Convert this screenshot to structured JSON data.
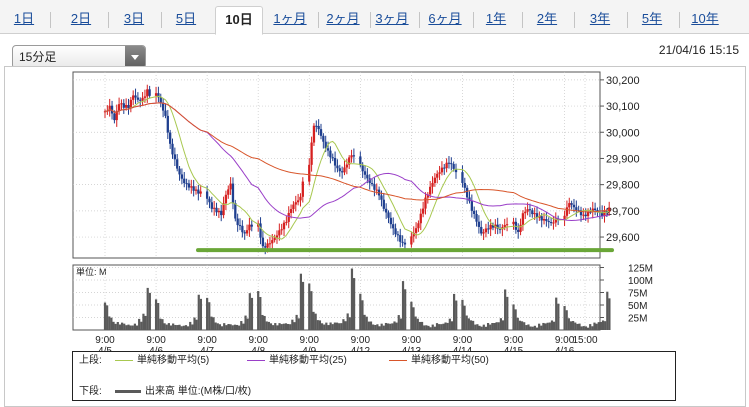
{
  "tabs": [
    {
      "label": "1日",
      "active": false
    },
    {
      "label": "2日",
      "active": false
    },
    {
      "label": "3日",
      "active": false
    },
    {
      "label": "5日",
      "active": false
    },
    {
      "label": "10日",
      "active": true
    },
    {
      "label": "1ヶ月",
      "active": false
    },
    {
      "label": "2ヶ月",
      "active": false
    },
    {
      "label": "3ヶ月",
      "active": false
    },
    {
      "label": "6ヶ月",
      "active": false
    },
    {
      "label": "1年",
      "active": false
    },
    {
      "label": "2年",
      "active": false
    },
    {
      "label": "3年",
      "active": false
    },
    {
      "label": "5年",
      "active": false
    },
    {
      "label": "10年",
      "active": false
    }
  ],
  "interval_select": {
    "value": "15分足"
  },
  "datetime": "21/04/16 15:15",
  "colors": {
    "up": "#d62020",
    "down": "#1f3f8f",
    "ma5": "#a8c850",
    "ma25": "#9a3fc8",
    "ma50": "#d8552a",
    "support": "#6aa637",
    "volume": "#5a5a5a",
    "grid": "#c8c8c8"
  },
  "legend": {
    "upper_label": "上段:",
    "lower_label": "下段:",
    "ma5": "単純移動平均(5)",
    "ma25": "単純移動平均(25)",
    "ma50": "単純移動平均(50)",
    "volume": "出来高 単位:(M株/口/枚)"
  },
  "volume_unit_label": "単位: M",
  "chart_data": [
    {
      "type": "candlestick",
      "title": "",
      "y_ticks": [
        29600,
        29700,
        29800,
        29900,
        30000,
        30100,
        30200
      ],
      "y_tick_labels": [
        "29,600",
        "29,700",
        "29,800",
        "29,900",
        "30,000",
        "30,100",
        "30,200"
      ],
      "ylim": [
        29520,
        30230
      ],
      "x_tick_labels": [
        {
          "time": "9:00",
          "date": "4/5"
        },
        {
          "time": "9:00",
          "date": "4/6"
        },
        {
          "time": "9:00",
          "date": "4/7"
        },
        {
          "time": "9:00",
          "date": "4/8"
        },
        {
          "time": "9:00",
          "date": "4/9"
        },
        {
          "time": "9:00",
          "date": "4/12"
        },
        {
          "time": "9:00",
          "date": "4/13"
        },
        {
          "time": "9:00",
          "date": "4/14"
        },
        {
          "time": "9:00",
          "date": "4/15"
        },
        {
          "time": "9:00",
          "date": "4/16"
        },
        {
          "time": "15:00",
          "date": ""
        }
      ],
      "daily_close_path": [
        [
          30080,
          30110,
          30060,
          30120,
          30100,
          30090,
          30130,
          30110,
          30120,
          30160
        ],
        [
          30140,
          30100,
          30050,
          29950,
          29900,
          29850,
          29820,
          29800,
          29780,
          29760
        ],
        [
          29760,
          29720,
          29700,
          29680,
          29750,
          29790,
          29660,
          29640,
          29620,
          29660
        ],
        [
          29640,
          29560,
          29580,
          29600,
          29620,
          29640,
          29660,
          29700,
          29720,
          29740
        ],
        [
          29880,
          30020,
          30000,
          29950,
          29920,
          29900,
          29870,
          29860,
          29890,
          29920
        ],
        [
          29880,
          29850,
          29820,
          29790,
          29760,
          29700,
          29660,
          29620,
          29600,
          29580
        ],
        [
          29590,
          29620,
          29680,
          29750,
          29800,
          29840,
          29860,
          29870,
          29880,
          29850
        ],
        [
          29820,
          29760,
          29700,
          29650,
          29600,
          29620,
          29640,
          29650,
          29640,
          29660
        ],
        [
          29650,
          29620,
          29700,
          29720,
          29700,
          29680,
          29660,
          29650,
          29640,
          29660
        ],
        [
          29680,
          29720,
          29700,
          29690,
          29680,
          29700,
          29720,
          29710,
          29690,
          29700
        ]
      ],
      "support_line": 29550
    },
    {
      "type": "bar",
      "title": "",
      "y_ticks": [
        25,
        50,
        75,
        100,
        125
      ],
      "y_tick_labels": [
        "25M",
        "50M",
        "75M",
        "100M",
        "125M"
      ],
      "ylim": [
        0,
        130
      ],
      "daily_volume": [
        [
          55,
          30,
          18,
          14,
          12,
          10,
          12,
          14,
          20,
          30,
          85
        ],
        [
          60,
          25,
          16,
          13,
          10,
          9,
          10,
          12,
          15,
          22,
          70
        ],
        [
          62,
          28,
          18,
          12,
          11,
          10,
          11,
          13,
          18,
          26,
          72
        ],
        [
          75,
          30,
          20,
          15,
          12,
          11,
          13,
          15,
          22,
          28,
          110
        ],
        [
          90,
          35,
          22,
          16,
          14,
          12,
          14,
          16,
          24,
          32,
          120
        ],
        [
          70,
          28,
          18,
          14,
          12,
          10,
          12,
          14,
          20,
          30,
          95
        ],
        [
          55,
          24,
          16,
          12,
          10,
          9,
          11,
          12,
          18,
          24,
          70
        ],
        [
          60,
          26,
          18,
          13,
          11,
          10,
          11,
          13,
          18,
          26,
          80
        ],
        [
          52,
          22,
          15,
          11,
          10,
          9,
          10,
          12,
          16,
          22,
          65
        ],
        [
          50,
          22,
          15,
          12,
          10,
          9,
          10,
          12,
          16,
          22,
          78
        ]
      ]
    }
  ]
}
